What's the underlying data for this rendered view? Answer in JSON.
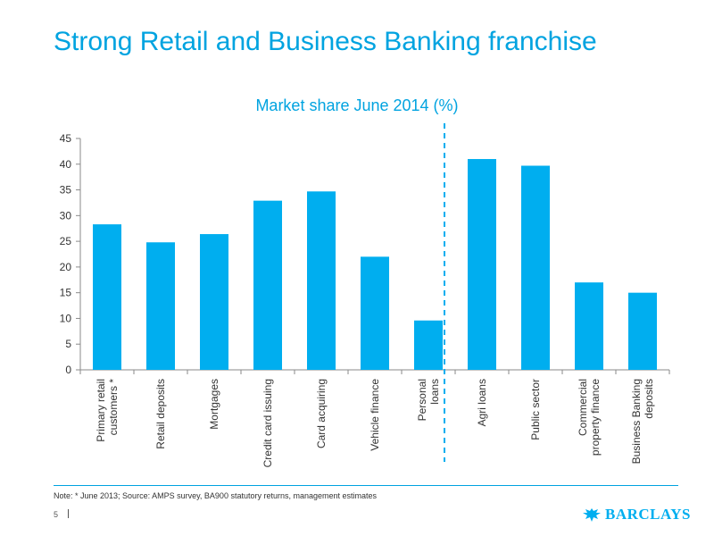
{
  "slide": {
    "title": "Strong Retail and Business Banking franchise",
    "note": "Note: * June 2013;  Source: AMPS survey, BA900 statutory returns, management estimates",
    "page_number": "5",
    "brand": "BARCLAYS"
  },
  "colors": {
    "accent": "#00a3e0",
    "bar": "#00aeef"
  },
  "chart_data": {
    "type": "bar",
    "title": "Market share June 2014 (%)",
    "xlabel": "",
    "ylabel": "",
    "ylim": [
      0,
      45
    ],
    "yticks": [
      "0",
      "5",
      "10",
      "15",
      "20",
      "25",
      "30",
      "35",
      "40",
      "45"
    ],
    "categories": [
      [
        "Primary retail",
        "customers *"
      ],
      [
        "Retail deposits"
      ],
      [
        "Mortgages"
      ],
      [
        "Credit card issuing"
      ],
      [
        "Card acquiring"
      ],
      [
        "Vehicle finance"
      ],
      [
        "Personal",
        "loans"
      ],
      [
        "Agri loans"
      ],
      [
        "Public sector"
      ],
      [
        "Commercial",
        "property finance"
      ],
      [
        "Business Banking",
        "deposits"
      ]
    ],
    "values": [
      28.3,
      24.8,
      26.4,
      32.9,
      34.7,
      22.0,
      9.6,
      41.0,
      39.7,
      17.0,
      15.0
    ],
    "divider_after_category": 7,
    "grid": false,
    "legend": "none"
  }
}
